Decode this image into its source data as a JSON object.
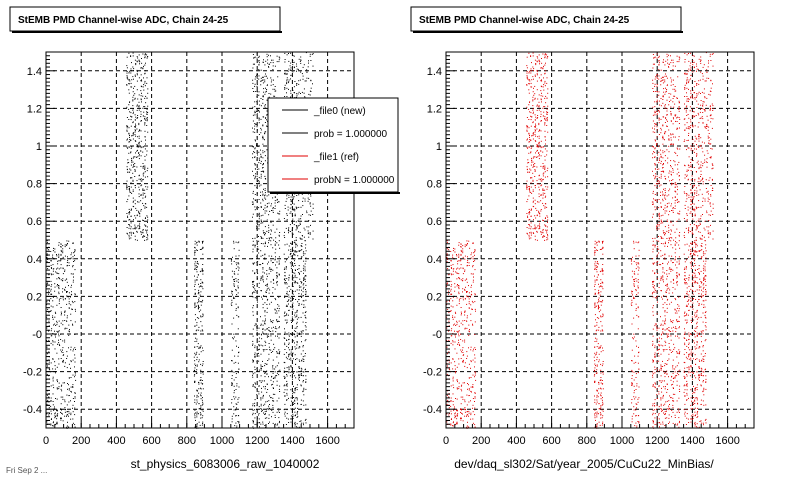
{
  "chart_data": [
    {
      "type": "scatter",
      "title": "StEMB PMD Channel-wise ADC, Chain 24-25",
      "xlabel": "st_physics_6083006_raw_1040002",
      "ylabel": "",
      "xlim": [
        0,
        1750
      ],
      "ylim": [
        -0.5,
        1.5
      ],
      "xticks": [
        "0",
        "200",
        "400",
        "600",
        "800",
        "1000",
        "1200",
        "1400",
        "1600"
      ],
      "yticks": [
        "-0.4",
        "-0.2",
        "-0",
        "0.2",
        "0.4",
        "0.6",
        "0.8",
        "1",
        "1.2",
        "1.4"
      ],
      "grid": true,
      "marker_color": "#000000",
      "bands": [
        {
          "x": [
            0,
            170
          ],
          "y": [
            -0.5,
            0.5
          ],
          "density": "dense"
        },
        {
          "x": [
            455,
            580
          ],
          "y": [
            0.5,
            1.5
          ],
          "density": "dense"
        },
        {
          "x": [
            840,
            895
          ],
          "y": [
            -0.5,
            0.5
          ],
          "density": "medium"
        },
        {
          "x": [
            1050,
            1100
          ],
          "y": [
            -0.5,
            0.5
          ],
          "density": "sparse"
        },
        {
          "x": [
            1170,
            1330
          ],
          "y": [
            0.5,
            1.5
          ],
          "density": "dense"
        },
        {
          "x": [
            1170,
            1330
          ],
          "y": [
            -0.5,
            0.5
          ],
          "density": "dense"
        },
        {
          "x": [
            1350,
            1520
          ],
          "y": [
            0.5,
            1.5
          ],
          "density": "dense"
        },
        {
          "x": [
            1350,
            1480
          ],
          "y": [
            -0.5,
            0.5
          ],
          "density": "dense"
        }
      ],
      "legend": {
        "placement": "top-right",
        "entries": [
          {
            "label": "_file0 (new)",
            "color": "#000000"
          },
          {
            "label": "prob = 1.000000",
            "color": "#000000"
          },
          {
            "label": "_file1 (ref)",
            "color": "#e00000"
          },
          {
            "label": "probN = 1.000000",
            "color": "#e00000"
          }
        ]
      }
    },
    {
      "type": "scatter",
      "title": "StEMB PMD Channel-wise ADC, Chain 24-25",
      "xlabel": "dev/daq_sl302/Sat/year_2005/CuCu22_MinBias/",
      "ylabel": "",
      "xlim": [
        0,
        1750
      ],
      "ylim": [
        -0.5,
        1.5
      ],
      "xticks": [
        "0",
        "200",
        "400",
        "600",
        "800",
        "1000",
        "1200",
        "1400",
        "1600"
      ],
      "yticks": [
        "-0.4",
        "-0.2",
        "-0",
        "0.2",
        "0.4",
        "0.6",
        "0.8",
        "1",
        "1.2",
        "1.4"
      ],
      "grid": true,
      "marker_color": "#e00000",
      "bands": [
        {
          "x": [
            0,
            170
          ],
          "y": [
            -0.5,
            0.5
          ],
          "density": "dense"
        },
        {
          "x": [
            455,
            580
          ],
          "y": [
            0.5,
            1.5
          ],
          "density": "dense"
        },
        {
          "x": [
            840,
            895
          ],
          "y": [
            -0.5,
            0.5
          ],
          "density": "medium"
        },
        {
          "x": [
            1050,
            1100
          ],
          "y": [
            -0.5,
            0.5
          ],
          "density": "sparse"
        },
        {
          "x": [
            1170,
            1330
          ],
          "y": [
            0.5,
            1.5
          ],
          "density": "dense"
        },
        {
          "x": [
            1170,
            1330
          ],
          "y": [
            -0.5,
            0.5
          ],
          "density": "dense"
        },
        {
          "x": [
            1350,
            1520
          ],
          "y": [
            0.5,
            1.5
          ],
          "density": "dense"
        },
        {
          "x": [
            1350,
            1480
          ],
          "y": [
            -0.5,
            0.5
          ],
          "density": "dense"
        }
      ]
    }
  ],
  "footer": {
    "timestamp": "Fri Sep 2 ..."
  }
}
